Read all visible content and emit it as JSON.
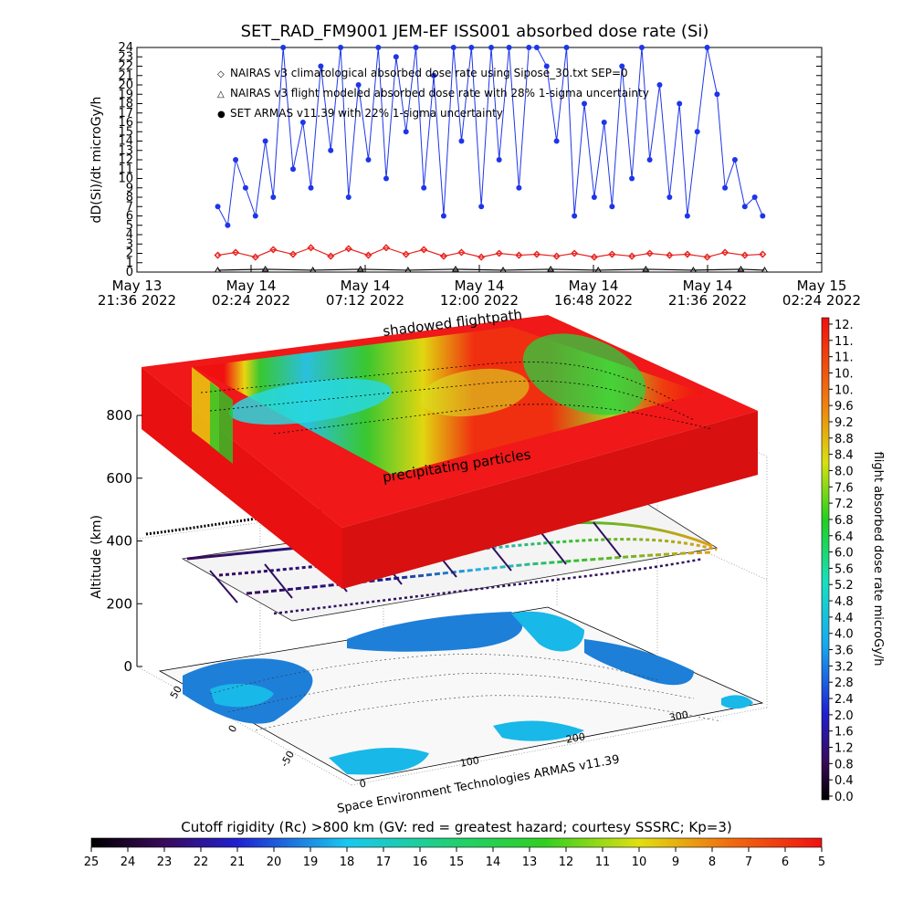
{
  "title": "SET_RAD_FM9001  JEM-EF ISS001 absorbed dose rate (Si)",
  "top_chart": {
    "ylabel": "dD(Si)/dt microGy/h",
    "x_ticks": [
      {
        "d": "May 13",
        "t": "21:36 2022"
      },
      {
        "d": "May 14",
        "t": "02:24 2022"
      },
      {
        "d": "May 14",
        "t": "07:12 2022"
      },
      {
        "d": "May 14",
        "t": "12:00 2022"
      },
      {
        "d": "May 14",
        "t": "16:48 2022"
      },
      {
        "d": "May 14",
        "t": "21:36 2022"
      },
      {
        "d": "May 15",
        "t": "02:24 2022"
      }
    ],
    "legend": [
      {
        "symbol": "◇",
        "color": "#e8231f",
        "text": "NAIRAS v3 climatological absorbed dose rate using Sipose_30.txt SEP=0"
      },
      {
        "symbol": "△",
        "color": "#000000",
        "text": "NAIRAS v3 flight modeled absorbed dose rate with 28% 1-sigma uncertainty"
      },
      {
        "symbol": "●",
        "color": "#1f35e8",
        "text": "SET ARMAS v11.39 with 22% 1-sigma uncertainty"
      }
    ]
  },
  "globe": {
    "ylabel": "Altitude (km)",
    "z_ticks": [
      "0",
      "200",
      "400",
      "600",
      "800"
    ],
    "lat_ticks": [
      "50",
      "0",
      "-50"
    ],
    "lon_ticks": [
      "0",
      "100",
      "200",
      "300"
    ],
    "label_shadow": "shadowed flightpath",
    "label_precip": "precipitating particles",
    "credit": "Space Environment Technologies ARMAS v11.39"
  },
  "right_colorbar": {
    "label": "flight absorbed dose rate microGy/h",
    "ticks": [
      "12.",
      "11.",
      "11.",
      "10.",
      "10.",
      "9.6",
      "9.2",
      "8.8",
      "8.4",
      "8.0",
      "7.6",
      "7.2",
      "6.8",
      "6.4",
      "6.0",
      "5.6",
      "5.2",
      "4.8",
      "4.4",
      "4.0",
      "3.6",
      "3.2",
      "2.8",
      "2.4",
      "2.0",
      "1.6",
      "1.2",
      "0.8",
      "0.4",
      "0.0"
    ]
  },
  "bottom_colorbar": {
    "label": "Cutoff rigidity (Rc) >800 km (GV: red = greatest hazard; courtesy SSSRC; Kp=3)",
    "ticks": [
      "25",
      "24",
      "23",
      "22",
      "21",
      "20",
      "19",
      "18",
      "17",
      "16",
      "15",
      "14",
      "13",
      "12",
      "11",
      "10",
      "9",
      "8",
      "7",
      "6",
      "5"
    ]
  },
  "chart_data": {
    "type": "scatter",
    "title": "SET_RAD_FM9001  JEM-EF ISS001 absorbed dose rate (Si)",
    "xlabel": "",
    "ylabel": "dD(Si)/dt microGy/h",
    "x_range": [
      "2022-05-13 21:36",
      "2022-05-15 02:24"
    ],
    "ylim": [
      0,
      24
    ],
    "yticks": [
      0,
      1,
      2,
      3,
      4,
      5,
      6,
      7,
      8,
      9,
      10,
      11,
      12,
      13,
      14,
      15,
      16,
      17,
      18,
      19,
      20,
      21,
      22,
      23,
      24
    ],
    "series": [
      {
        "name": "NAIRAS v3 climatological absorbed dose rate using Sipose_30.txt SEP=0",
        "color": "#e8231f",
        "marker": "diamond",
        "x": [
          "2022-05-14 01:00",
          "2022-05-14 01:45",
          "2022-05-14 02:35",
          "2022-05-14 03:20",
          "2022-05-14 04:10",
          "2022-05-14 04:55",
          "2022-05-14 05:45",
          "2022-05-14 06:30",
          "2022-05-14 07:20",
          "2022-05-14 08:05",
          "2022-05-14 08:55",
          "2022-05-14 09:40",
          "2022-05-14 10:30",
          "2022-05-14 11:15",
          "2022-05-14 12:05",
          "2022-05-14 12:50",
          "2022-05-14 13:40",
          "2022-05-14 14:25",
          "2022-05-14 15:15",
          "2022-05-14 16:00",
          "2022-05-14 16:50",
          "2022-05-14 17:35",
          "2022-05-14 18:25",
          "2022-05-14 19:10",
          "2022-05-14 20:00",
          "2022-05-14 20:45",
          "2022-05-14 21:35",
          "2022-05-14 22:20",
          "2022-05-14 23:10",
          "2022-05-14 23:55"
        ],
        "y": [
          1.8,
          2.1,
          1.6,
          2.4,
          1.9,
          2.6,
          1.7,
          2.5,
          1.8,
          2.6,
          1.9,
          2.4,
          1.7,
          2.1,
          1.6,
          2.0,
          1.8,
          1.9,
          1.7,
          2.0,
          1.6,
          1.9,
          1.7,
          2.0,
          1.8,
          1.9,
          1.6,
          2.1,
          1.8,
          1.9
        ]
      },
      {
        "name": "NAIRAS v3 flight modeled absorbed dose rate with 28% 1-sigma uncertainty",
        "color": "#000000",
        "marker": "triangle",
        "x": [
          "2022-05-14 01:00",
          "2022-05-14 03:00",
          "2022-05-14 05:00",
          "2022-05-14 07:00",
          "2022-05-14 09:00",
          "2022-05-14 11:00",
          "2022-05-14 13:00",
          "2022-05-14 15:00",
          "2022-05-14 17:00",
          "2022-05-14 19:00",
          "2022-05-14 21:00",
          "2022-05-14 23:00",
          "2022-05-15 00:00"
        ],
        "y": [
          0.2,
          0.3,
          0.2,
          0.3,
          0.2,
          0.3,
          0.2,
          0.3,
          0.2,
          0.3,
          0.2,
          0.3,
          0.2
        ]
      },
      {
        "name": "SET ARMAS v11.39 with 22% 1-sigma uncertainty",
        "color": "#1f35e8",
        "marker": "circle",
        "x": [
          "2022-05-14 01:00",
          "2022-05-14 01:25",
          "2022-05-14 01:45",
          "2022-05-14 02:10",
          "2022-05-14 02:35",
          "2022-05-14 03:00",
          "2022-05-14 03:20",
          "2022-05-14 03:45",
          "2022-05-14 04:10",
          "2022-05-14 04:35",
          "2022-05-14 04:55",
          "2022-05-14 05:20",
          "2022-05-14 05:45",
          "2022-05-14 06:10",
          "2022-05-14 06:30",
          "2022-05-14 06:55",
          "2022-05-14 07:20",
          "2022-05-14 07:45",
          "2022-05-14 08:05",
          "2022-05-14 08:30",
          "2022-05-14 08:55",
          "2022-05-14 09:20",
          "2022-05-14 09:40",
          "2022-05-14 10:05",
          "2022-05-14 10:30",
          "2022-05-14 10:55",
          "2022-05-14 11:15",
          "2022-05-14 11:40",
          "2022-05-14 12:05",
          "2022-05-14 12:30",
          "2022-05-14 12:50",
          "2022-05-14 13:15",
          "2022-05-14 13:40",
          "2022-05-14 14:05",
          "2022-05-14 14:25",
          "2022-05-14 14:50",
          "2022-05-14 15:15",
          "2022-05-14 15:40",
          "2022-05-14 16:00",
          "2022-05-14 16:25",
          "2022-05-14 16:50",
          "2022-05-14 17:15",
          "2022-05-14 17:35",
          "2022-05-14 18:00",
          "2022-05-14 18:25",
          "2022-05-14 18:50",
          "2022-05-14 19:10",
          "2022-05-14 19:35",
          "2022-05-14 20:00",
          "2022-05-14 20:25",
          "2022-05-14 20:45",
          "2022-05-14 21:10",
          "2022-05-14 21:35",
          "2022-05-14 22:00",
          "2022-05-14 22:20",
          "2022-05-14 22:45",
          "2022-05-14 23:10",
          "2022-05-14 23:35",
          "2022-05-14 23:55"
        ],
        "y": [
          7,
          5,
          12,
          9,
          6,
          14,
          8,
          24,
          11,
          16,
          9,
          22,
          13,
          24,
          8,
          20,
          12,
          24,
          10,
          23,
          15,
          24,
          9,
          21,
          6,
          24,
          14,
          24,
          7,
          24,
          12,
          24,
          9,
          24,
          24,
          22,
          14,
          24,
          6,
          18,
          8,
          16,
          7,
          22,
          10,
          24,
          12,
          20,
          8,
          18,
          6,
          15,
          24,
          19,
          9,
          12,
          7,
          8,
          6
        ]
      }
    ],
    "right_colorbar": {
      "label": "flight absorbed dose rate microGy/h",
      "range": [
        0.0,
        12.0
      ]
    },
    "bottom_colorbar": {
      "label": "Cutoff rigidity (Rc) >800 km (GV: red = greatest hazard; courtesy SSSRC; Kp=3)",
      "range": [
        25,
        5
      ]
    },
    "altitude_axis": {
      "label": "Altitude (km)",
      "range": [
        0,
        850
      ]
    }
  }
}
